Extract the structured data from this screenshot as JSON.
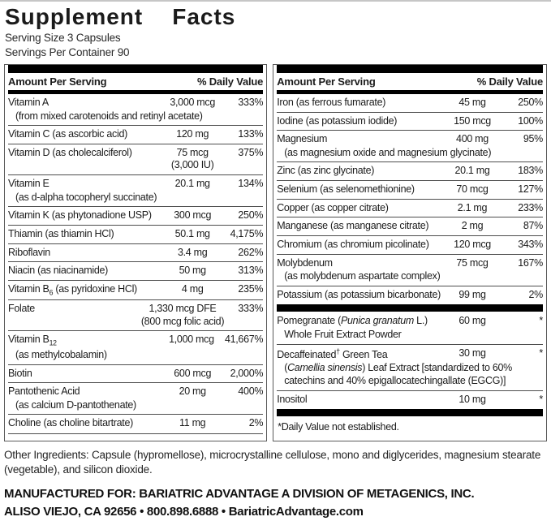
{
  "header": {
    "title_word1": "Supplement",
    "title_word2": "Facts",
    "serving_size": "Serving Size 3 Capsules",
    "servings_per_container": "Servings Per Container 90"
  },
  "table_header": {
    "amount_label": "Amount Per Serving",
    "dv_label": "% Daily Value"
  },
  "left_column": {
    "rows": [
      {
        "name": [
          "Vitamin A"
        ],
        "sub": [
          "(from mixed carotenoids and retinyl acetate)"
        ],
        "amount": [
          "3,000 mcg"
        ],
        "dv": "333%"
      },
      {
        "name": [
          "Vitamin C (as ascorbic acid)"
        ],
        "amount": [
          "120 mg"
        ],
        "dv": "133%"
      },
      {
        "name": [
          "Vitamin D (as cholecalciferol)"
        ],
        "amount": [
          "75 mcg",
          "(3,000 IU)"
        ],
        "dv": "375%"
      },
      {
        "name": [
          "Vitamin E"
        ],
        "sub": [
          "(as d-alpha tocopheryl succinate)"
        ],
        "amount": [
          "20.1 mg"
        ],
        "dv": "134%"
      },
      {
        "name": [
          "Vitamin K (as phytonadione USP)"
        ],
        "amount": [
          "300 mcg"
        ],
        "dv": "250%"
      },
      {
        "name": [
          "Thiamin (as thiamin HCl)"
        ],
        "amount": [
          "50.1 mg"
        ],
        "dv": "4,175%"
      },
      {
        "name": [
          "Riboflavin"
        ],
        "amount": [
          "3.4 mg"
        ],
        "dv": "262%"
      },
      {
        "name": [
          "Niacin (as niacinamide)"
        ],
        "amount": [
          "50 mg"
        ],
        "dv": "313%"
      },
      {
        "name": [
          "Vitamin B",
          {
            "t": "6",
            "style": "sub"
          },
          " (as pyridoxine HCl)"
        ],
        "amount": [
          "4 mg"
        ],
        "dv": "235%"
      },
      {
        "name": [
          "Folate"
        ],
        "amount": [
          "1,330 mcg DFE",
          "(800 mcg folic acid)"
        ],
        "dv": "333%"
      },
      {
        "name": [
          "Vitamin B",
          {
            "t": "12",
            "style": "sub"
          }
        ],
        "sub": [
          "(as methylcobalamin)"
        ],
        "amount": [
          "1,000 mcg"
        ],
        "dv": "41,667%"
      },
      {
        "name": [
          "Biotin"
        ],
        "amount": [
          "600 mcg"
        ],
        "dv": "2,000%"
      },
      {
        "name": [
          "Pantothenic Acid"
        ],
        "sub": [
          "(as calcium D-pantothenate)"
        ],
        "amount": [
          "20 mg"
        ],
        "dv": "400%"
      },
      {
        "name": [
          "Choline (as choline bitartrate)"
        ],
        "amount": [
          "11 mg"
        ],
        "dv": "2%"
      }
    ]
  },
  "right_column": {
    "rows": [
      {
        "name": [
          "Iron (as ferrous fumarate)"
        ],
        "amount": [
          "45 mg"
        ],
        "dv": "250%"
      },
      {
        "name": [
          "Iodine (as potassium iodide)"
        ],
        "amount": [
          "150 mcg"
        ],
        "dv": "100%"
      },
      {
        "name": [
          "Magnesium"
        ],
        "sub": [
          "(as magnesium oxide and magnesium glycinate)"
        ],
        "amount": [
          "400 mg"
        ],
        "dv": "95%"
      },
      {
        "name": [
          "Zinc (as zinc glycinate)"
        ],
        "amount": [
          "20.1 mg"
        ],
        "dv": "183%"
      },
      {
        "name": [
          "Selenium (as selenomethionine)"
        ],
        "amount": [
          "70 mcg"
        ],
        "dv": "127%"
      },
      {
        "name": [
          "Copper (as copper citrate)"
        ],
        "amount": [
          "2.1 mg"
        ],
        "dv": "233%"
      },
      {
        "name": [
          "Manganese (as manganese citrate)"
        ],
        "amount": [
          "2 mg"
        ],
        "dv": "87%"
      },
      {
        "name": [
          "Chromium (as chromium picolinate)"
        ],
        "amount": [
          "120 mcg"
        ],
        "dv": "343%"
      },
      {
        "name": [
          "Molybdenum"
        ],
        "sub": [
          "(as molybdenum aspartate complex)"
        ],
        "amount": [
          "75 mcg"
        ],
        "dv": "167%"
      },
      {
        "name": [
          "Potassium (as potassium bicarbonate)"
        ],
        "amount": [
          "99 mg"
        ],
        "dv": "2%"
      },
      {
        "divider": true
      },
      {
        "name": [
          "Pomegranate (",
          {
            "t": "Punica granatum",
            "style": "italic"
          },
          " L.)"
        ],
        "sub": [
          "Whole Fruit Extract Powder"
        ],
        "amount": [
          "60 mg"
        ],
        "dv": "*"
      },
      {
        "name": [
          "Decaffeinated",
          {
            "t": "†",
            "style": "sup"
          },
          " Green Tea"
        ],
        "sub": [
          "(",
          {
            "t": "Camellia sinensis",
            "style": "italic"
          },
          ") Leaf Extract [standardized to 60% catechins and 40% epigallocatechingallate (EGCG)]"
        ],
        "amount": [
          "30 mg"
        ],
        "dv": "*"
      },
      {
        "name": [
          "Inositol"
        ],
        "amount": [
          "10 mg"
        ],
        "dv": "*"
      },
      {
        "divider": true
      },
      {
        "note": "*Daily Value not established."
      }
    ]
  },
  "other_ingredients": "Other Ingredients: Capsule (hypromellose), microcrystalline cellulose, mono and diglycerides, magnesium stearate (vegetable), and silicon dioxide.",
  "footer": {
    "line1": "MANUFACTURED FOR: BARIATRIC ADVANTAGE A DIVISION OF METAGENICS, INC.",
    "line2": "ALISO VIEJO, CA 92656 • 800.898.6888 • BariatricAdvantage.com"
  }
}
